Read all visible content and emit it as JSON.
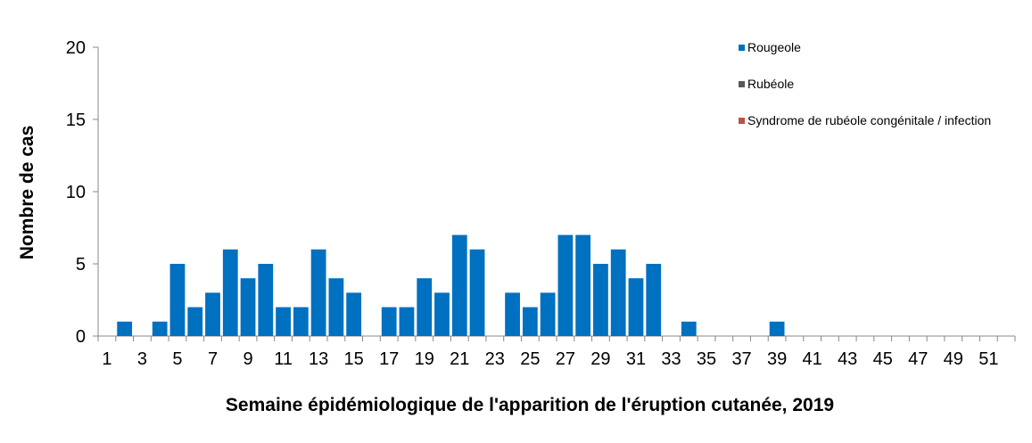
{
  "chart_data": {
    "type": "bar",
    "title": "",
    "xlabel": "Semaine épidémiologique de l'apparition de l'éruption cutanée, 2019",
    "ylabel": "Nombre de cas",
    "ylim": [
      0,
      20
    ],
    "yticks": [
      0,
      5,
      10,
      15,
      20
    ],
    "categories": [
      1,
      2,
      3,
      4,
      5,
      6,
      7,
      8,
      9,
      10,
      11,
      12,
      13,
      14,
      15,
      16,
      17,
      18,
      19,
      20,
      21,
      22,
      23,
      24,
      25,
      26,
      27,
      28,
      29,
      30,
      31,
      32,
      33,
      34,
      35,
      36,
      37,
      38,
      39,
      40,
      41,
      42,
      43,
      44,
      45,
      46,
      47,
      48,
      49,
      50,
      51,
      52
    ],
    "xtick_labels": [
      "1",
      "3",
      "5",
      "7",
      "9",
      "11",
      "13",
      "15",
      "17",
      "19",
      "21",
      "23",
      "25",
      "27",
      "29",
      "31",
      "33",
      "35",
      "37",
      "39",
      "41",
      "43",
      "45",
      "47",
      "49",
      "51"
    ],
    "series": [
      {
        "name": "Rougeole",
        "color": "#0070C0",
        "values": [
          0,
          1,
          0,
          1,
          5,
          2,
          3,
          6,
          4,
          5,
          2,
          2,
          6,
          4,
          3,
          0,
          2,
          2,
          4,
          3,
          7,
          6,
          0,
          3,
          2,
          3,
          7,
          7,
          5,
          6,
          4,
          5,
          0,
          1,
          0,
          0,
          0,
          0,
          1,
          0,
          0,
          0,
          0,
          0,
          0,
          0,
          0,
          0,
          0,
          0,
          0,
          0
        ]
      },
      {
        "name": "Rubéole",
        "color": "#595959",
        "values": [
          0,
          0,
          0,
          0,
          0,
          0,
          0,
          0,
          0,
          0,
          0,
          0,
          0,
          0,
          0,
          0,
          0,
          0,
          0,
          0,
          0,
          0,
          0,
          0,
          0,
          0,
          0,
          0,
          0,
          0,
          0,
          0,
          0,
          0,
          0,
          0,
          0,
          0,
          0,
          0,
          0,
          0,
          0,
          0,
          0,
          0,
          0,
          0,
          0,
          0,
          0,
          0
        ]
      },
      {
        "name": "Syndrome de rubéole congénitale / infection",
        "color": "#C0504D",
        "values": [
          0,
          0,
          0,
          0,
          0,
          0,
          0,
          0,
          0,
          0,
          0,
          0,
          0,
          0,
          0,
          0,
          0,
          0,
          0,
          0,
          0,
          0,
          0,
          0,
          0,
          0,
          0,
          0,
          0,
          0,
          0,
          0,
          0,
          0,
          0,
          0,
          0,
          0,
          0,
          0,
          0,
          0,
          0,
          0,
          0,
          0,
          0,
          0,
          0,
          0,
          0,
          0
        ]
      }
    ],
    "stacked": true,
    "grid": false,
    "legend_position": "top-right"
  }
}
